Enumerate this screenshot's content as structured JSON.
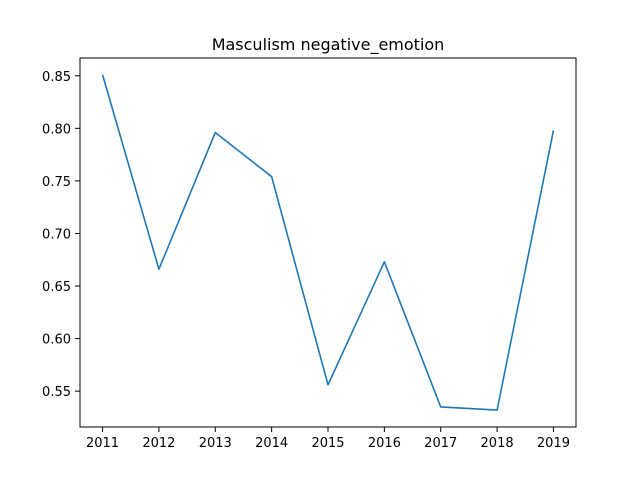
{
  "chart_data": {
    "type": "line",
    "title": "Masculism negative_emotion",
    "xlabel": "",
    "ylabel": "",
    "x": [
      2011,
      2012,
      2013,
      2014,
      2015,
      2016,
      2017,
      2018,
      2019
    ],
    "series": [
      {
        "values": [
          0.851,
          0.666,
          0.796,
          0.754,
          0.556,
          0.673,
          0.535,
          0.532,
          0.798
        ],
        "color": "#1f77b4"
      }
    ],
    "xlim": [
      2010.6,
      2019.4
    ],
    "ylim": [
      0.5159,
      0.8669
    ],
    "xticks": [
      "2011",
      "2012",
      "2013",
      "2014",
      "2015",
      "2016",
      "2017",
      "2018",
      "2019"
    ],
    "yticks": [
      "0.55",
      "0.60",
      "0.65",
      "0.70",
      "0.75",
      "0.80",
      "0.85"
    ],
    "ytick_values": [
      0.55,
      0.6,
      0.65,
      0.7,
      0.75,
      0.8,
      0.85
    ],
    "grid": false,
    "legend": "none"
  }
}
